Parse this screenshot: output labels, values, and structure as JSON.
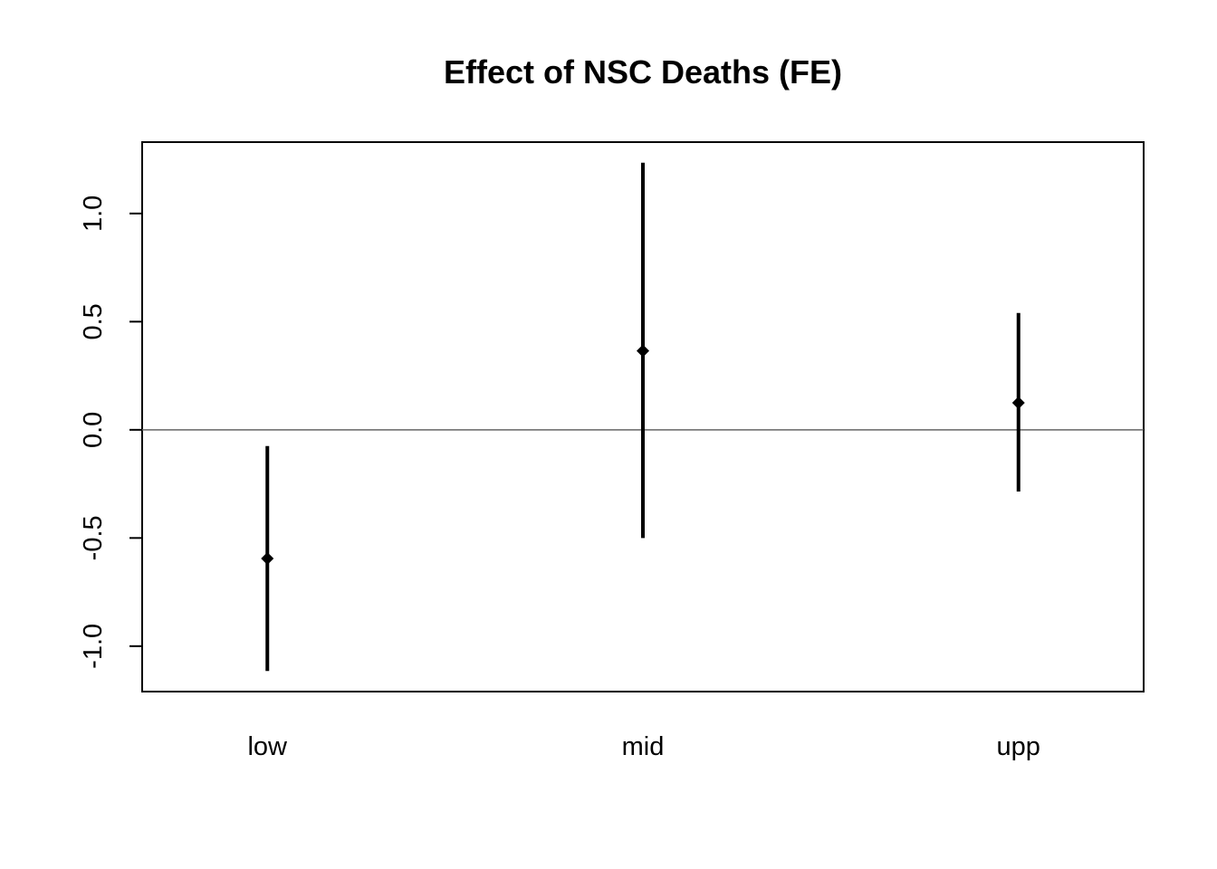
{
  "chart_data": {
    "type": "scatter",
    "title": "Effect of NSC Deaths (FE)",
    "xlabel": "",
    "ylabel": "",
    "categories": [
      "low",
      "mid",
      "upp"
    ],
    "estimates": [
      -0.595,
      0.365,
      0.125
    ],
    "ci_lower": [
      -1.115,
      -0.5,
      -0.285
    ],
    "ci_upper": [
      -0.075,
      1.235,
      0.54
    ],
    "ylim": [
      -1.21,
      1.33
    ],
    "y_ticks": [
      -1.0,
      -0.5,
      0.0,
      0.5,
      1.0
    ],
    "y_tick_labels": [
      "-1.0",
      "-0.5",
      "0.0",
      "0.5",
      "1.0"
    ],
    "reference_line": 0,
    "grid": false,
    "legend": "none",
    "colors": {
      "points": "#000000",
      "reference_line": "#666666"
    }
  }
}
